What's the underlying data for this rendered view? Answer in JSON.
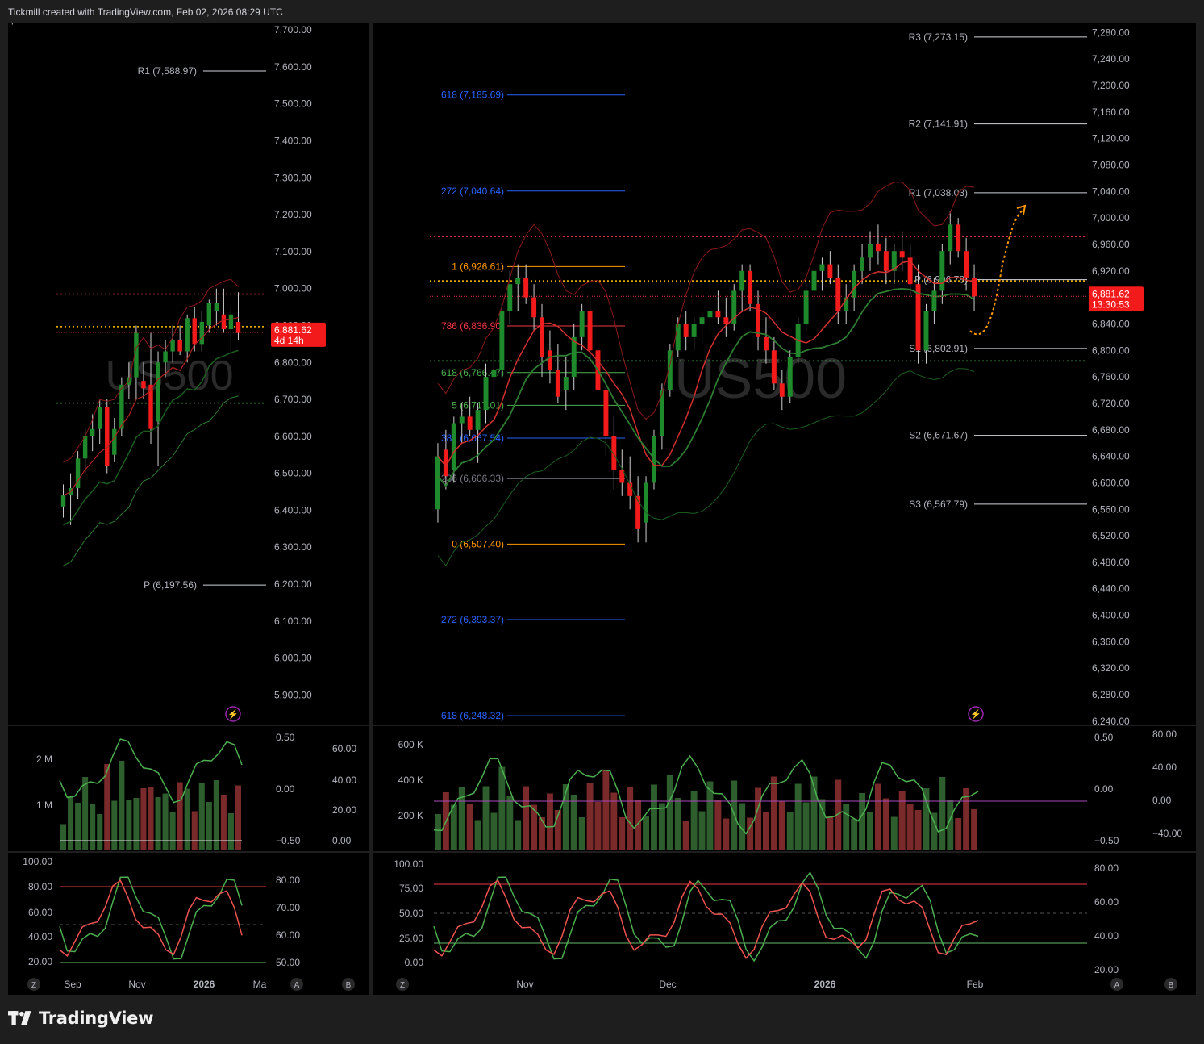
{
  "header": {
    "credit": "Tickmill created with TradingView.com, Feb 02, 2026 08:29 UTC"
  },
  "brand": {
    "name": "TradingView"
  },
  "colors": {
    "up": "#1f8a2c",
    "down": "#f21a1a",
    "axis_text": "#b2b5be",
    "grid_bg": "#000000",
    "orange": "#ff9800",
    "fib_blue": "#2962ff"
  },
  "chart_data": [
    {
      "type": "candlestick",
      "timeframe": "weekly",
      "symbol_watermark": "US500",
      "price_axis": {
        "ticks": [
          "7,700.00",
          "7,600.00",
          "7,500.00",
          "7,400.00",
          "7,300.00",
          "7,200.00",
          "7,100.00",
          "7,000.00",
          "6,900.00",
          "6,800.00",
          "6,700.00",
          "6,600.00",
          "6,500.00",
          "6,400.00",
          "6,300.00",
          "6,200.00",
          "6,100.00",
          "6,000.00",
          "5,900.00"
        ],
        "ylim": [
          5820,
          7720
        ]
      },
      "time_axis": {
        "ticks": [
          "Sep",
          "Nov",
          "2026",
          "Ma"
        ],
        "bold": "2026"
      },
      "pivots": [
        {
          "label": "R1 (7,588.97)",
          "value": 7588.97
        },
        {
          "label": "P (6,197.56)",
          "value": 6197.56
        }
      ],
      "price_label": {
        "value": "6,881.62",
        "countdown": "4d 14h"
      },
      "dotted_levels": [
        {
          "value": 6985,
          "color": "#f23645"
        },
        {
          "value": 6897,
          "color": "#ffc107"
        },
        {
          "value": 6690,
          "color": "#4caf50"
        }
      ],
      "candles": [
        {
          "o": 6410,
          "h": 6470,
          "l": 6380,
          "c": 6440
        },
        {
          "o": 6440,
          "h": 6500,
          "l": 6360,
          "c": 6460
        },
        {
          "o": 6460,
          "h": 6560,
          "l": 6430,
          "c": 6540
        },
        {
          "o": 6540,
          "h": 6620,
          "l": 6500,
          "c": 6600
        },
        {
          "o": 6600,
          "h": 6660,
          "l": 6560,
          "c": 6620
        },
        {
          "o": 6620,
          "h": 6700,
          "l": 6580,
          "c": 6680
        },
        {
          "o": 6680,
          "h": 6700,
          "l": 6500,
          "c": 6520
        },
        {
          "o": 6550,
          "h": 6650,
          "l": 6530,
          "c": 6620
        },
        {
          "o": 6620,
          "h": 6760,
          "l": 6600,
          "c": 6740
        },
        {
          "o": 6740,
          "h": 6800,
          "l": 6700,
          "c": 6760
        },
        {
          "o": 6760,
          "h": 6900,
          "l": 6700,
          "c": 6880
        },
        {
          "o": 6750,
          "h": 6800,
          "l": 6700,
          "c": 6730
        },
        {
          "o": 6740,
          "h": 6880,
          "l": 6580,
          "c": 6620
        },
        {
          "o": 6640,
          "h": 6830,
          "l": 6520,
          "c": 6800
        },
        {
          "o": 6800,
          "h": 6860,
          "l": 6760,
          "c": 6830
        },
        {
          "o": 6830,
          "h": 6900,
          "l": 6800,
          "c": 6860
        },
        {
          "o": 6860,
          "h": 6900,
          "l": 6820,
          "c": 6830
        },
        {
          "o": 6830,
          "h": 6930,
          "l": 6800,
          "c": 6920
        },
        {
          "o": 6920,
          "h": 6950,
          "l": 6830,
          "c": 6850
        },
        {
          "o": 6850,
          "h": 6940,
          "l": 6830,
          "c": 6910
        },
        {
          "o": 6900,
          "h": 6970,
          "l": 6880,
          "c": 6960
        },
        {
          "o": 6940,
          "h": 7000,
          "l": 6900,
          "c": 6960
        },
        {
          "o": 6930,
          "h": 7000,
          "l": 6880,
          "c": 6890
        },
        {
          "o": 6890,
          "h": 6950,
          "l": 6830,
          "c": 6930
        },
        {
          "o": 6910,
          "h": 6990,
          "l": 6860,
          "c": 6880
        }
      ]
    },
    {
      "type": "candlestick",
      "timeframe": "daily",
      "symbol_watermark": "US500",
      "price_axis": {
        "ticks": [
          "7,280.00",
          "7,240.00",
          "7,200.00",
          "7,160.00",
          "7,120.00",
          "7,080.00",
          "7,040.00",
          "7,000.00",
          "6,960.00",
          "6,920.00",
          "6,880.00",
          "6,840.00",
          "6,800.00",
          "6,760.00",
          "6,720.00",
          "6,680.00",
          "6,640.00",
          "6,600.00",
          "6,560.00",
          "6,520.00",
          "6,480.00",
          "6,440.00",
          "6,400.00",
          "6,360.00",
          "6,320.00",
          "6,280.00",
          "6,240.00"
        ],
        "ylim": [
          6235,
          7295
        ]
      },
      "time_axis": {
        "ticks": [
          "Nov",
          "Dec",
          "2026",
          "Feb"
        ],
        "bold": "2026"
      },
      "fib_levels": [
        {
          "label": "618 (7,185.69)",
          "value": 7185.69,
          "color": "#2962ff"
        },
        {
          "label": "272 (7,040.64)",
          "value": 7040.64,
          "color": "#2962ff"
        },
        {
          "label": "1 (6,926.61)",
          "value": 6926.61,
          "color": "#ff9800"
        },
        {
          "label": "786 (6,836.90)",
          "value": 6836.9,
          "color": "#f23645"
        },
        {
          "label": "618 (6,766.47)",
          "value": 6766.47,
          "color": "#4caf50"
        },
        {
          "label": "5 (6,717.01)",
          "value": 6717.01,
          "color": "#4caf50"
        },
        {
          "label": "382 (6,667.54)",
          "value": 6667.54,
          "color": "#2962ff"
        },
        {
          "label": "236 (6,606.33)",
          "value": 6606.33,
          "color": "#787b86"
        },
        {
          "label": "0 (6,507.40)",
          "value": 6507.4,
          "color": "#ff9800"
        },
        {
          "label": "272 (6,393.37)",
          "value": 6393.37,
          "color": "#2962ff"
        },
        {
          "label": "618 (6,248.32)",
          "value": 6248.32,
          "color": "#2962ff"
        }
      ],
      "pivots": [
        {
          "label": "R3 (7,273.15)",
          "value": 7273.15
        },
        {
          "label": "R2 (7,141.91)",
          "value": 7141.91
        },
        {
          "label": "R1 (7,038.03)",
          "value": 7038.03
        },
        {
          "label": "P (6,906.78)",
          "value": 6906.78
        },
        {
          "label": "S1 (6,802.91)",
          "value": 6802.91
        },
        {
          "label": "S2 (6,671.67)",
          "value": 6671.67
        },
        {
          "label": "S3 (6,567.79)",
          "value": 6567.79
        }
      ],
      "price_label": {
        "value": "6,881.62",
        "countdown": "13:30:53"
      },
      "dotted_levels": [
        {
          "value": 6972,
          "color": "#f23645"
        },
        {
          "value": 6905,
          "color": "#ffc107"
        },
        {
          "value": 6784,
          "color": "#4caf50"
        }
      ],
      "candles": [
        {
          "o": 6560,
          "h": 6660,
          "l": 6540,
          "c": 6640
        },
        {
          "o": 6650,
          "h": 6680,
          "l": 6590,
          "c": 6610
        },
        {
          "o": 6620,
          "h": 6700,
          "l": 6600,
          "c": 6690
        },
        {
          "o": 6690,
          "h": 6720,
          "l": 6660,
          "c": 6700
        },
        {
          "o": 6700,
          "h": 6730,
          "l": 6670,
          "c": 6680
        },
        {
          "o": 6680,
          "h": 6720,
          "l": 6630,
          "c": 6710
        },
        {
          "o": 6710,
          "h": 6780,
          "l": 6690,
          "c": 6760
        },
        {
          "o": 6760,
          "h": 6800,
          "l": 6720,
          "c": 6770
        },
        {
          "o": 6770,
          "h": 6870,
          "l": 6760,
          "c": 6860
        },
        {
          "o": 6860,
          "h": 6920,
          "l": 6840,
          "c": 6900
        },
        {
          "o": 6900,
          "h": 6930,
          "l": 6860,
          "c": 6910
        },
        {
          "o": 6910,
          "h": 6930,
          "l": 6870,
          "c": 6880
        },
        {
          "o": 6880,
          "h": 6900,
          "l": 6830,
          "c": 6850
        },
        {
          "o": 6850,
          "h": 6870,
          "l": 6760,
          "c": 6790
        },
        {
          "o": 6800,
          "h": 6830,
          "l": 6750,
          "c": 6770
        },
        {
          "o": 6770,
          "h": 6810,
          "l": 6720,
          "c": 6730
        },
        {
          "o": 6740,
          "h": 6790,
          "l": 6710,
          "c": 6760
        },
        {
          "o": 6760,
          "h": 6840,
          "l": 6740,
          "c": 6820
        },
        {
          "o": 6820,
          "h": 6870,
          "l": 6800,
          "c": 6860
        },
        {
          "o": 6860,
          "h": 6880,
          "l": 6780,
          "c": 6800
        },
        {
          "o": 6800,
          "h": 6830,
          "l": 6720,
          "c": 6740
        },
        {
          "o": 6740,
          "h": 6770,
          "l": 6640,
          "c": 6670
        },
        {
          "o": 6670,
          "h": 6700,
          "l": 6590,
          "c": 6620
        },
        {
          "o": 6620,
          "h": 6650,
          "l": 6580,
          "c": 6600
        },
        {
          "o": 6600,
          "h": 6640,
          "l": 6560,
          "c": 6580
        },
        {
          "o": 6580,
          "h": 6610,
          "l": 6510,
          "c": 6530
        },
        {
          "o": 6540,
          "h": 6610,
          "l": 6510,
          "c": 6600
        },
        {
          "o": 6600,
          "h": 6680,
          "l": 6590,
          "c": 6670
        },
        {
          "o": 6670,
          "h": 6750,
          "l": 6650,
          "c": 6740
        },
        {
          "o": 6740,
          "h": 6810,
          "l": 6730,
          "c": 6800
        },
        {
          "o": 6800,
          "h": 6850,
          "l": 6790,
          "c": 6840
        },
        {
          "o": 6840,
          "h": 6860,
          "l": 6800,
          "c": 6820
        },
        {
          "o": 6820,
          "h": 6850,
          "l": 6800,
          "c": 6840
        },
        {
          "o": 6840,
          "h": 6860,
          "l": 6810,
          "c": 6850
        },
        {
          "o": 6850,
          "h": 6880,
          "l": 6830,
          "c": 6860
        },
        {
          "o": 6860,
          "h": 6890,
          "l": 6840,
          "c": 6850
        },
        {
          "o": 6850,
          "h": 6880,
          "l": 6820,
          "c": 6840
        },
        {
          "o": 6840,
          "h": 6900,
          "l": 6830,
          "c": 6890
        },
        {
          "o": 6890,
          "h": 6930,
          "l": 6860,
          "c": 6920
        },
        {
          "o": 6920,
          "h": 6930,
          "l": 6860,
          "c": 6870
        },
        {
          "o": 6870,
          "h": 6890,
          "l": 6800,
          "c": 6820
        },
        {
          "o": 6820,
          "h": 6850,
          "l": 6780,
          "c": 6800
        },
        {
          "o": 6800,
          "h": 6820,
          "l": 6740,
          "c": 6750
        },
        {
          "o": 6750,
          "h": 6770,
          "l": 6710,
          "c": 6730
        },
        {
          "o": 6730,
          "h": 6800,
          "l": 6720,
          "c": 6790
        },
        {
          "o": 6790,
          "h": 6850,
          "l": 6780,
          "c": 6840
        },
        {
          "o": 6840,
          "h": 6900,
          "l": 6830,
          "c": 6890
        },
        {
          "o": 6890,
          "h": 6940,
          "l": 6870,
          "c": 6920
        },
        {
          "o": 6920,
          "h": 6940,
          "l": 6890,
          "c": 6930
        },
        {
          "o": 6930,
          "h": 6950,
          "l": 6900,
          "c": 6910
        },
        {
          "o": 6910,
          "h": 6930,
          "l": 6840,
          "c": 6860
        },
        {
          "o": 6860,
          "h": 6900,
          "l": 6840,
          "c": 6880
        },
        {
          "o": 6880,
          "h": 6930,
          "l": 6860,
          "c": 6920
        },
        {
          "o": 6920,
          "h": 6960,
          "l": 6900,
          "c": 6940
        },
        {
          "o": 6940,
          "h": 6980,
          "l": 6920,
          "c": 6960
        },
        {
          "o": 6960,
          "h": 6990,
          "l": 6930,
          "c": 6950
        },
        {
          "o": 6950,
          "h": 6970,
          "l": 6900,
          "c": 6920
        },
        {
          "o": 6920,
          "h": 6960,
          "l": 6900,
          "c": 6950
        },
        {
          "o": 6950,
          "h": 6980,
          "l": 6920,
          "c": 6940
        },
        {
          "o": 6940,
          "h": 6960,
          "l": 6880,
          "c": 6900
        },
        {
          "o": 6900,
          "h": 6930,
          "l": 6780,
          "c": 6800
        },
        {
          "o": 6800,
          "h": 6870,
          "l": 6780,
          "c": 6860
        },
        {
          "o": 6860,
          "h": 6910,
          "l": 6840,
          "c": 6890
        },
        {
          "o": 6890,
          "h": 6960,
          "l": 6870,
          "c": 6950
        },
        {
          "o": 6950,
          "h": 7010,
          "l": 6930,
          "c": 6990
        },
        {
          "o": 6990,
          "h": 7000,
          "l": 6940,
          "c": 6950
        },
        {
          "o": 6950,
          "h": 6970,
          "l": 6890,
          "c": 6910
        },
        {
          "o": 6910,
          "h": 6930,
          "l": 6860,
          "c": 6881.62
        }
      ]
    }
  ],
  "indicators": {
    "weekly_volume": {
      "axis_left": [
        "2 M",
        "1 M"
      ],
      "axis_right1": [
        "0.50",
        "0.00",
        "−0.50"
      ],
      "axis_right2": [
        "60.00",
        "40.00",
        "20.00",
        "0.00"
      ]
    },
    "weekly_stoch": {
      "axis_left": [
        "100.00",
        "80.00",
        "60.00",
        "40.00",
        "20.00"
      ],
      "axis_right": [
        "80.00",
        "70.00",
        "60.00",
        "50.00"
      ]
    },
    "daily_volume": {
      "axis_left": [
        "600 K",
        "400 K",
        "200 K"
      ],
      "axis_right1": [
        "0.50",
        "0.00",
        "−0.50"
      ],
      "axis_right2": [
        "80.00",
        "40.00",
        "0.00",
        "−40.00"
      ]
    },
    "daily_stoch": {
      "axis_left": [
        "100.00",
        "75.00",
        "50.00",
        "25.00",
        "0.00"
      ],
      "axis_right": [
        "80.00",
        "60.00",
        "40.00",
        "20.00"
      ]
    }
  },
  "footer_buttons": {
    "z": "Z",
    "a": "A",
    "b": "B"
  }
}
